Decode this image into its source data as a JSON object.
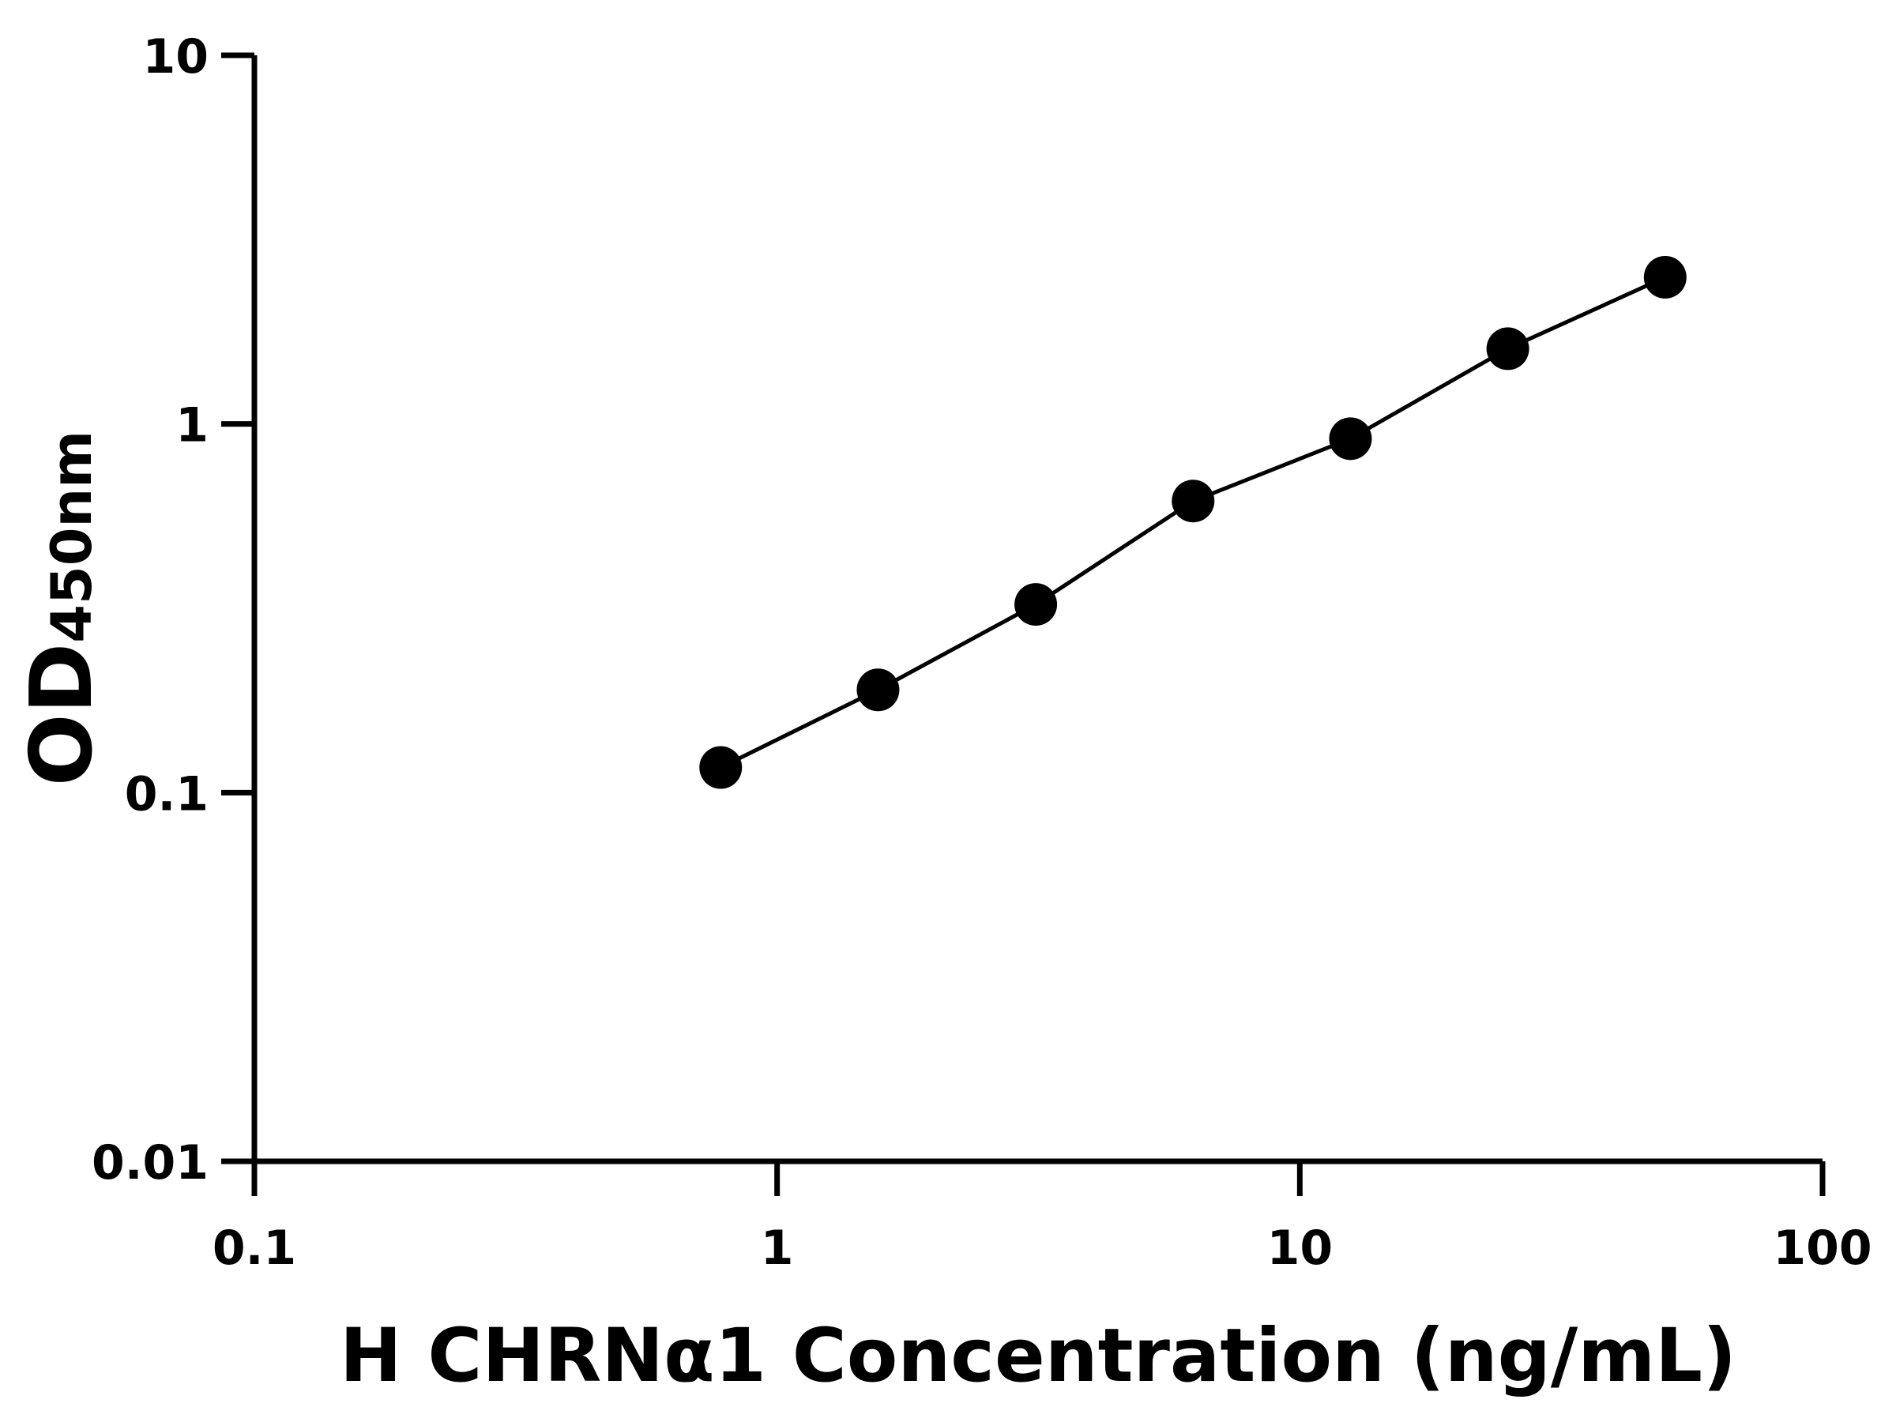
{
  "chart_data": {
    "type": "line",
    "title": "",
    "xlabel": "H CHRNα1 Concentration (ng/mL)",
    "ylabel_main": "OD",
    "ylabel_sub": "450nm",
    "x_scale": "log",
    "y_scale": "log",
    "xlim": [
      0.1,
      100
    ],
    "ylim": [
      0.01,
      10
    ],
    "x_ticks": [
      0.1,
      1,
      10,
      100
    ],
    "x_tick_labels": [
      "0.1",
      "1",
      "10",
      "100"
    ],
    "y_ticks": [
      0.01,
      0.1,
      1,
      10
    ],
    "y_tick_labels": [
      "0.01",
      "0.1",
      "1",
      "10"
    ],
    "grid": false,
    "legend": "none",
    "series": [
      {
        "x": [
          0.78,
          1.56,
          3.125,
          6.25,
          12.5,
          25,
          50
        ],
        "y": [
          0.117,
          0.19,
          0.324,
          0.618,
          0.912,
          1.6,
          2.5
        ],
        "color": "#000000",
        "marker": "circle"
      }
    ]
  }
}
